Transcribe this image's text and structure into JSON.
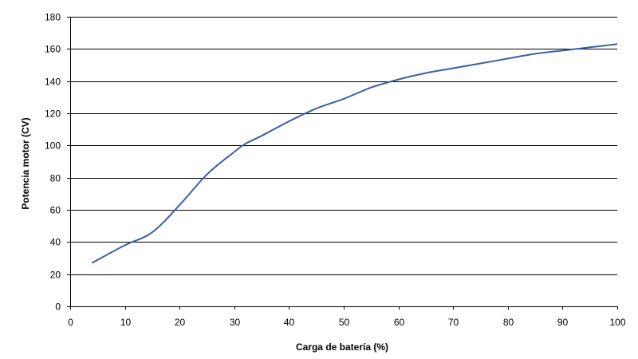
{
  "chart_data": {
    "type": "line",
    "xlabel": "Carga de batería (%)",
    "ylabel": "Potencia motor (CV)",
    "xlim": [
      0,
      100
    ],
    "ylim": [
      0,
      180
    ],
    "x_ticks": [
      "0",
      "10",
      "20",
      "30",
      "40",
      "50",
      "60",
      "70",
      "80",
      "90",
      "100"
    ],
    "y_ticks": [
      "0",
      "20",
      "40",
      "60",
      "80",
      "100",
      "120",
      "140",
      "160",
      "180"
    ],
    "grid": "horizontal",
    "legend": "none",
    "series": [
      {
        "color": "#3a5fa8",
        "x": [
          4,
          10,
          15,
          20,
          25,
          30,
          32,
          35,
          40,
          45,
          50,
          55,
          60,
          65,
          70,
          75,
          80,
          85,
          90,
          95,
          100
        ],
        "y": [
          27,
          38,
          46,
          63,
          82,
          96,
          101,
          106,
          115,
          123,
          129,
          136,
          141,
          145,
          148,
          151,
          154,
          157,
          159,
          161,
          163
        ]
      }
    ]
  }
}
